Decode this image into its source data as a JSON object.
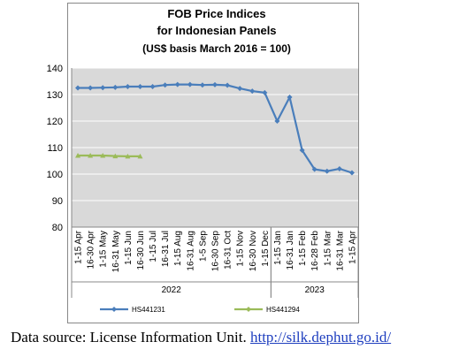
{
  "chart_data": {
    "type": "line",
    "title": [
      "FOB Price Indices",
      "for Indonesian Panels",
      "(US$ basis March 2016 = 100)"
    ],
    "category_groups": [
      {
        "label": "2022",
        "categories": [
          "1-15 Apr",
          "16-30 Apr",
          "1-15 May",
          "16-31 May",
          "1-15 Jun",
          "16-30 Jun",
          "1-15 Jul",
          "16-31 Jul",
          "1-15 Aug",
          "16-31 Aug",
          "1-5 Sep",
          "16-30 Sep",
          "16-31 Oct",
          "1-15 Nov",
          "16-30 Nov",
          "1-15 Dec"
        ]
      },
      {
        "label": "2023",
        "categories": [
          "1-15 Jan",
          "16-31 Jan",
          "1-15 Feb",
          "16-28 Feb",
          "1-15 Mar",
          "16-31 Mar",
          "1-15 Apr"
        ]
      }
    ],
    "series": [
      {
        "name": "HS441231",
        "color": "#4a7ebb",
        "values": [
          132.5,
          132.5,
          132.6,
          132.7,
          133,
          133,
          133,
          133.6,
          133.8,
          133.8,
          133.6,
          133.7,
          133.5,
          132.3,
          131.3,
          130.7,
          120,
          129,
          109,
          101.8,
          101.1,
          102,
          100.5
        ]
      },
      {
        "name": "HS441294",
        "color": "#9bbb59",
        "values": [
          107,
          107,
          107,
          106.8,
          106.7,
          106.7,
          null,
          null,
          null,
          null,
          null,
          null,
          null,
          null,
          null,
          null,
          null,
          null,
          null,
          null,
          null,
          null,
          null
        ]
      }
    ],
    "ylim": [
      80,
      140
    ],
    "yticks": [
      80,
      90,
      100,
      110,
      120,
      130,
      140
    ],
    "grid": true
  },
  "caption": {
    "text": "Data source: License Information Unit. ",
    "link": "http://silk.dephut.go.id/"
  }
}
